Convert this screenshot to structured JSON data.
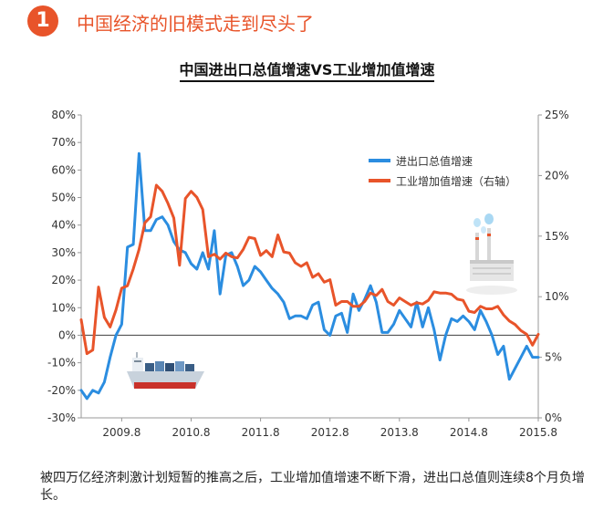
{
  "header": {
    "number": "1",
    "headline": "中国经济的旧模式走到尽头了"
  },
  "caption": "被四万亿经济刺激计划短暂的推高之后，工业增加值增速不断下滑，进出口总值则连续8个月负增长。",
  "colors": {
    "accent": "#e8542a",
    "series_trade": "#2b8de0",
    "series_industry": "#e8542a"
  },
  "icons": {
    "ship": "cargo-ship-icon",
    "factory": "factory-icon"
  },
  "chart_data": {
    "type": "line",
    "title": "中国进出口总值增速VS工业增加值增速",
    "x_start": "2009.1",
    "x_end": "2015.8",
    "x_ticks": [
      "2009.8",
      "2010.8",
      "2011.8",
      "2012.8",
      "2013.8",
      "2014.8",
      "2015.8"
    ],
    "ylim_left": [
      -30,
      80
    ],
    "yticks_left": [
      "80%",
      "70%",
      "60%",
      "50%",
      "40%",
      "30%",
      "20%",
      "10%",
      "0%",
      "-10%",
      "-20%",
      "-30%"
    ],
    "ylim_right": [
      0,
      25
    ],
    "yticks_right": [
      "25%",
      "20%",
      "15%",
      "10%",
      "5%",
      "0%"
    ],
    "legend_position": "top-right",
    "grid": false,
    "series": [
      {
        "name": "进出口总值增速",
        "axis": "left",
        "color": "#2b8de0",
        "points": [
          [
            "2009.1",
            -20
          ],
          [
            "2009.2",
            -23
          ],
          [
            "2009.3",
            -20
          ],
          [
            "2009.4",
            -21
          ],
          [
            "2009.5",
            -17
          ],
          [
            "2009.6",
            -8
          ],
          [
            "2009.7",
            0
          ],
          [
            "2009.8",
            4
          ],
          [
            "2009.9",
            32
          ],
          [
            "2009.10",
            33
          ],
          [
            "2009.11",
            66
          ],
          [
            "2009.12",
            38
          ],
          [
            "2010.1",
            38
          ],
          [
            "2010.2",
            42
          ],
          [
            "2010.3",
            43
          ],
          [
            "2010.4",
            40
          ],
          [
            "2010.5",
            34
          ],
          [
            "2010.6",
            31
          ],
          [
            "2010.7",
            30
          ],
          [
            "2010.8",
            26
          ],
          [
            "2010.9",
            24
          ],
          [
            "2010.10",
            30
          ],
          [
            "2010.11",
            24
          ],
          [
            "2010.12",
            38
          ],
          [
            "2011.1",
            15
          ],
          [
            "2011.2",
            29
          ],
          [
            "2011.3",
            30
          ],
          [
            "2011.4",
            25
          ],
          [
            "2011.5",
            18
          ],
          [
            "2011.6",
            20
          ],
          [
            "2011.7",
            25
          ],
          [
            "2011.8",
            23
          ],
          [
            "2011.9",
            20
          ],
          [
            "2011.10",
            17
          ],
          [
            "2011.11",
            15
          ],
          [
            "2011.12",
            12
          ],
          [
            "2012.1",
            6
          ],
          [
            "2012.2",
            7
          ],
          [
            "2012.3",
            7
          ],
          [
            "2012.4",
            6
          ],
          [
            "2012.5",
            11
          ],
          [
            "2012.6",
            12
          ],
          [
            "2012.7",
            2
          ],
          [
            "2012.8",
            0
          ],
          [
            "2012.9",
            7
          ],
          [
            "2012.10",
            8
          ],
          [
            "2012.11",
            1
          ],
          [
            "2012.12",
            15
          ],
          [
            "2013.1",
            9
          ],
          [
            "2013.2",
            13
          ],
          [
            "2013.3",
            18
          ],
          [
            "2013.4",
            12
          ],
          [
            "2013.5",
            1
          ],
          [
            "2013.6",
            1
          ],
          [
            "2013.7",
            4
          ],
          [
            "2013.8",
            9
          ],
          [
            "2013.9",
            6
          ],
          [
            "2013.10",
            3
          ],
          [
            "2013.11",
            12
          ],
          [
            "2013.12",
            3
          ],
          [
            "2014.1",
            10
          ],
          [
            "2014.2",
            2
          ],
          [
            "2014.3",
            -9
          ],
          [
            "2014.4",
            0
          ],
          [
            "2014.5",
            6
          ],
          [
            "2014.6",
            5
          ],
          [
            "2014.7",
            7
          ],
          [
            "2014.8",
            5
          ],
          [
            "2014.9",
            2
          ],
          [
            "2014.10",
            9
          ],
          [
            "2014.11",
            5
          ],
          [
            "2014.12",
            0
          ],
          [
            "2015.1",
            -7
          ],
          [
            "2015.2",
            -4
          ],
          [
            "2015.3",
            -16
          ],
          [
            "2015.4",
            -12
          ],
          [
            "2015.5",
            -8
          ],
          [
            "2015.6",
            -4
          ],
          [
            "2015.7",
            -8
          ],
          [
            "2015.8",
            -8
          ]
        ]
      },
      {
        "name": "工业增加值增速（右轴）",
        "axis": "right",
        "color": "#e8542a",
        "points": [
          [
            "2009.1",
            8.1
          ],
          [
            "2009.2",
            5.3
          ],
          [
            "2009.3",
            5.6
          ],
          [
            "2009.4",
            10.8
          ],
          [
            "2009.5",
            8.3
          ],
          [
            "2009.6",
            7.5
          ],
          [
            "2009.7",
            8.9
          ],
          [
            "2009.8",
            10.7
          ],
          [
            "2009.9",
            10.9
          ],
          [
            "2009.10",
            12.3
          ],
          [
            "2009.11",
            13.9
          ],
          [
            "2009.12",
            16.1
          ],
          [
            "2010.1",
            16.6
          ],
          [
            "2010.2",
            19.2
          ],
          [
            "2010.3",
            18.7
          ],
          [
            "2010.4",
            17.7
          ],
          [
            "2010.5",
            16.5
          ],
          [
            "2010.6",
            12.6
          ],
          [
            "2010.7",
            18.1
          ],
          [
            "2010.8",
            18.7
          ],
          [
            "2010.9",
            18.2
          ],
          [
            "2010.10",
            17.2
          ],
          [
            "2010.11",
            13.3
          ],
          [
            "2010.12",
            13.5
          ],
          [
            "2011.1",
            13.1
          ],
          [
            "2011.2",
            13.6
          ],
          [
            "2011.3",
            13.3
          ],
          [
            "2011.4",
            13.2
          ],
          [
            "2011.5",
            13.9
          ],
          [
            "2011.6",
            14.9
          ],
          [
            "2011.7",
            14.8
          ],
          [
            "2011.8",
            13.4
          ],
          [
            "2011.9",
            13.8
          ],
          [
            "2011.10",
            13.3
          ],
          [
            "2011.11",
            15.1
          ],
          [
            "2011.12",
            13.7
          ],
          [
            "2012.1",
            13.6
          ],
          [
            "2012.2",
            12.8
          ],
          [
            "2012.3",
            12.5
          ],
          [
            "2012.4",
            12.8
          ],
          [
            "2012.5",
            11.6
          ],
          [
            "2012.6",
            11.9
          ],
          [
            "2012.7",
            11.2
          ],
          [
            "2012.8",
            11.4
          ],
          [
            "2012.9",
            9.3
          ],
          [
            "2012.10",
            9.6
          ],
          [
            "2012.11",
            9.6
          ],
          [
            "2012.12",
            9.2
          ],
          [
            "2013.1",
            9.2
          ],
          [
            "2013.2",
            9.6
          ],
          [
            "2013.3",
            10.3
          ],
          [
            "2013.4",
            10.1
          ],
          [
            "2013.5",
            10.6
          ],
          [
            "2013.6",
            9.6
          ],
          [
            "2013.7",
            9.3
          ],
          [
            "2013.8",
            9.9
          ],
          [
            "2013.9",
            9.6
          ],
          [
            "2013.10",
            9.3
          ],
          [
            "2013.11",
            9.5
          ],
          [
            "2013.12",
            9.4
          ],
          [
            "2014.1",
            9.7
          ],
          [
            "2014.2",
            10.4
          ],
          [
            "2014.3",
            10.3
          ],
          [
            "2014.4",
            10.3
          ],
          [
            "2014.5",
            10.2
          ],
          [
            "2014.6",
            9.8
          ],
          [
            "2014.7",
            9.7
          ],
          [
            "2014.8",
            8.8
          ],
          [
            "2014.9",
            8.7
          ],
          [
            "2014.10",
            9.2
          ],
          [
            "2014.11",
            9.0
          ],
          [
            "2014.12",
            9.0
          ],
          [
            "2015.1",
            9.2
          ],
          [
            "2015.2",
            8.5
          ],
          [
            "2015.3",
            8.0
          ],
          [
            "2015.4",
            7.7
          ],
          [
            "2015.5",
            7.2
          ],
          [
            "2015.6",
            6.9
          ],
          [
            "2015.7",
            6.0
          ],
          [
            "2015.8",
            6.9
          ]
        ]
      }
    ]
  }
}
